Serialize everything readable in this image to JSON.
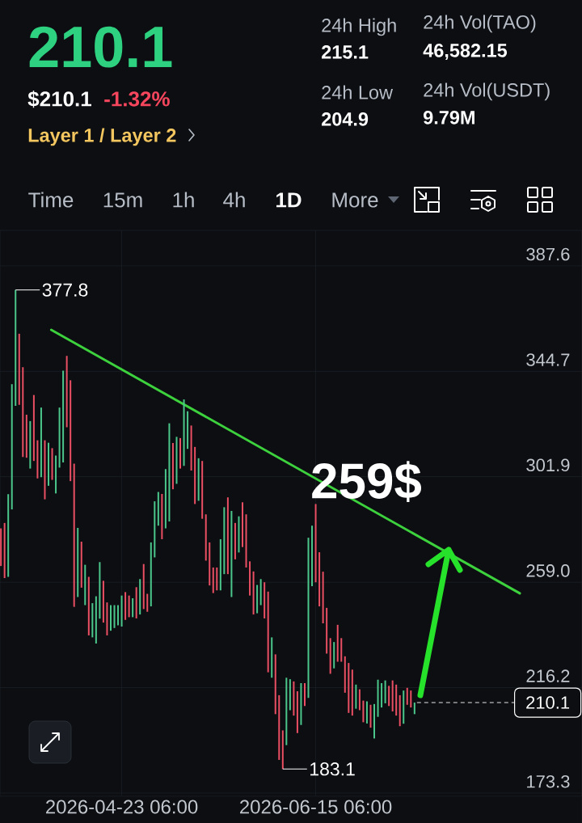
{
  "chart_data": {
    "type": "candlestick",
    "title": "210.1",
    "annotations": [
      "$210.1",
      "-1.32%",
      "Layer 1 / Layer 2",
      "24h High",
      "215.1",
      "24h Low",
      "204.9",
      "24h Vol(TAO)",
      "46,582.15",
      "24h Vol(USDT)",
      "9.79M",
      "Time",
      "15m",
      "1h",
      "4h",
      "1D",
      "More",
      {
        "text": "377.8",
        "x": "2026-03-25T06:00",
        "y": 377.8
      },
      {
        "text": "183.1",
        "x": "2026-06-06T06:00",
        "y": 183.1
      },
      "259$"
    ],
    "x": [
      "2026-03-21T06:00",
      "2026-03-22T06:00",
      "2026-03-23T06:00",
      "2026-03-24T06:00",
      "2026-03-25T06:00",
      "2026-03-26T06:00",
      "2026-03-27T06:00",
      "2026-03-28T06:00",
      "2026-03-29T06:00",
      "2026-03-30T06:00",
      "2026-03-31T06:00",
      "2026-04-01T06:00",
      "2026-04-02T06:00",
      "2026-04-03T06:00",
      "2026-04-04T06:00",
      "2026-04-05T06:00",
      "2026-04-06T06:00",
      "2026-04-07T06:00",
      "2026-04-08T06:00",
      "2026-04-09T06:00",
      "2026-04-10T06:00",
      "2026-04-11T06:00",
      "2026-04-12T06:00",
      "2026-04-13T06:00",
      "2026-04-14T06:00",
      "2026-04-15T06:00",
      "2026-04-16T06:00",
      "2026-04-17T06:00",
      "2026-04-18T06:00",
      "2026-04-19T06:00",
      "2026-04-20T06:00",
      "2026-04-21T06:00",
      "2026-04-22T06:00",
      "2026-04-23T06:00",
      "2026-04-24T06:00",
      "2026-04-25T06:00",
      "2026-04-26T06:00",
      "2026-04-27T06:00",
      "2026-04-28T06:00",
      "2026-04-29T06:00",
      "2026-04-30T06:00",
      "2026-05-01T06:00",
      "2026-05-02T06:00",
      "2026-05-03T06:00",
      "2026-05-04T06:00",
      "2026-05-05T06:00",
      "2026-05-06T06:00",
      "2026-05-07T06:00",
      "2026-05-08T06:00",
      "2026-05-09T06:00",
      "2026-05-10T06:00",
      "2026-05-11T06:00",
      "2026-05-12T06:00",
      "2026-05-13T06:00",
      "2026-05-14T06:00",
      "2026-05-15T06:00",
      "2026-05-16T06:00",
      "2026-05-17T06:00",
      "2026-05-18T06:00",
      "2026-05-19T06:00",
      "2026-05-20T06:00",
      "2026-05-21T06:00",
      "2026-05-22T06:00",
      "2026-05-23T06:00",
      "2026-05-24T06:00",
      "2026-05-25T06:00",
      "2026-05-26T06:00",
      "2026-05-27T06:00",
      "2026-05-28T06:00",
      "2026-05-29T06:00",
      "2026-05-30T06:00",
      "2026-05-31T06:00",
      "2026-06-01T06:00",
      "2026-06-02T06:00",
      "2026-06-03T06:00",
      "2026-06-04T06:00",
      "2026-06-05T06:00",
      "2026-06-06T06:00",
      "2026-06-07T06:00",
      "2026-06-08T06:00",
      "2026-06-09T06:00",
      "2026-06-10T06:00",
      "2026-06-11T06:00",
      "2026-06-12T06:00",
      "2026-06-13T06:00",
      "2026-06-14T06:00",
      "2026-06-15T06:00",
      "2026-06-16T06:00",
      "2026-06-17T06:00",
      "2026-06-18T06:00",
      "2026-06-19T06:00",
      "2026-06-20T06:00",
      "2026-06-21T06:00",
      "2026-06-22T06:00",
      "2026-06-23T06:00",
      "2026-06-24T06:00",
      "2026-06-25T06:00",
      "2026-06-26T06:00",
      "2026-06-27T06:00",
      "2026-06-28T06:00",
      "2026-06-29T06:00",
      "2026-06-30T06:00",
      "2026-07-01T06:00",
      "2026-07-02T06:00",
      "2026-07-03T06:00",
      "2026-07-04T06:00",
      "2026-07-05T06:00",
      "2026-07-06T06:00",
      "2026-07-07T06:00",
      "2026-07-08T06:00",
      "2026-07-09T06:00",
      "2026-07-10T06:00",
      "2026-07-11T06:00",
      "2026-07-12T06:00"
    ],
    "ohlc": [
      [
        280.9,
        280.9,
        265.6,
        265.6
      ],
      [
        283.1,
        283.1,
        260.7,
        260.7
      ],
      [
        261.2,
        294.8,
        261.2,
        294.8
      ],
      [
        288.6,
        339.5,
        288.6,
        339.5
      ],
      [
        330.7,
        377.8,
        330.7,
        377.8
      ],
      [
        360.0,
        360.0,
        331.1,
        331.1
      ],
      [
        346.4,
        346.4,
        309.9,
        309.9
      ],
      [
        327.1,
        327.1,
        309.6,
        309.6
      ],
      [
        305.2,
        324.5,
        305.2,
        324.5
      ],
      [
        335.1,
        335.1,
        308.3,
        308.3
      ],
      [
        316.7,
        316.7,
        301.2,
        301.2
      ],
      [
        301.7,
        330.0,
        301.7,
        330.0
      ],
      [
        316.7,
        316.7,
        292.7,
        292.7
      ],
      [
        298.2,
        315.7,
        298.2,
        315.7
      ],
      [
        313.5,
        313.5,
        300.6,
        300.6
      ],
      [
        295.1,
        310.5,
        295.1,
        310.5
      ],
      [
        305.6,
        330.0,
        305.6,
        330.0
      ],
      [
        307.7,
        345.0,
        307.7,
        345.0
      ],
      [
        351.0,
        351.0,
        322.0,
        322.0
      ],
      [
        341.1,
        341.1,
        300.1,
        300.1
      ],
      [
        307.2,
        307.2,
        249.0,
        249.0
      ],
      [
        253.0,
        281.1,
        253.0,
        281.1
      ],
      [
        275.5,
        275.5,
        256.8,
        256.8
      ],
      [
        249.7,
        266.1,
        249.7,
        266.1
      ],
      [
        261.2,
        261.2,
        237.4,
        237.4
      ],
      [
        236.6,
        250.5,
        236.6,
        250.5
      ],
      [
        234.1,
        253.3,
        234.1,
        253.3
      ],
      [
        244.2,
        267.2,
        244.2,
        267.2
      ],
      [
        259.6,
        259.6,
        242.6,
        242.6
      ],
      [
        250.8,
        250.8,
        237.4,
        237.4
      ],
      [
        239.3,
        249.7,
        239.3,
        249.7
      ],
      [
        240.4,
        249.7,
        240.4,
        249.7
      ],
      [
        241.5,
        249.7,
        241.5,
        249.7
      ],
      [
        241.0,
        253.6,
        241.0,
        253.6
      ],
      [
        255.0,
        255.0,
        243.7,
        243.7
      ],
      [
        253.6,
        253.6,
        244.8,
        244.8
      ],
      [
        244.8,
        252.5,
        244.8,
        252.5
      ],
      [
        257.0,
        257.0,
        244.3,
        244.3
      ],
      [
        245.9,
        260.3,
        245.9,
        260.3
      ],
      [
        266.4,
        266.4,
        248.1,
        248.1
      ],
      [
        254.3,
        254.3,
        247.0,
        247.0
      ],
      [
        249.2,
        275.2,
        249.2,
        275.2
      ],
      [
        269.1,
        291.9,
        269.1,
        291.9
      ],
      [
        282.0,
        295.7,
        282.0,
        295.7
      ],
      [
        294.9,
        294.9,
        276.5,
        276.5
      ],
      [
        280.9,
        305.0,
        280.9,
        305.0
      ],
      [
        283.7,
        323.6,
        283.7,
        323.6
      ],
      [
        315.6,
        315.6,
        296.8,
        296.8
      ],
      [
        299.0,
        318.1,
        299.0,
        318.1
      ],
      [
        317.6,
        317.6,
        305.2,
        305.2
      ],
      [
        306.3,
        333.3,
        306.3,
        333.3
      ],
      [
        313.2,
        328.5,
        313.2,
        328.5
      ],
      [
        322.7,
        322.7,
        304.4,
        304.4
      ],
      [
        314.0,
        314.0,
        290.8,
        290.8
      ],
      [
        292.1,
        309.4,
        292.1,
        309.4
      ],
      [
        308.3,
        308.3,
        284.8,
        284.8
      ],
      [
        286.6,
        286.6,
        267.8,
        267.8
      ],
      [
        275.2,
        275.2,
        257.7,
        257.7
      ],
      [
        265.0,
        265.0,
        254.6,
        254.6
      ],
      [
        265.0,
        265.0,
        255.7,
        255.7
      ],
      [
        255.7,
        276.5,
        255.7,
        276.5
      ],
      [
        262.3,
        289.5,
        262.3,
        289.5
      ],
      [
        293.5,
        293.5,
        262.3,
        262.3
      ],
      [
        253.0,
        288.0,
        253.0,
        288.0
      ],
      [
        283.1,
        283.1,
        268.3,
        268.3
      ],
      [
        271.1,
        285.8,
        271.1,
        285.8
      ],
      [
        291.5,
        291.5,
        273.3,
        273.3
      ],
      [
        286.6,
        286.6,
        265.0,
        265.0
      ],
      [
        267.5,
        267.5,
        253.6,
        253.6
      ],
      [
        263.4,
        263.4,
        245.9,
        245.9
      ],
      [
        246.4,
        257.9,
        246.4,
        257.9
      ],
      [
        249.7,
        260.3,
        249.7,
        260.3
      ],
      [
        259.0,
        259.0,
        244.3,
        244.3
      ],
      [
        255.2,
        255.2,
        222.4,
        222.4
      ],
      [
        220.2,
        236.6,
        220.2,
        236.6
      ],
      [
        229.7,
        229.7,
        205.4,
        205.4
      ],
      [
        213.1,
        213.1,
        186.8,
        186.8
      ],
      [
        198.8,
        198.8,
        183.1,
        183.1
      ],
      [
        192.8,
        220.2,
        192.8,
        220.2
      ],
      [
        207.0,
        219.6,
        207.0,
        219.6
      ],
      [
        218.7,
        218.7,
        204.8,
        204.8
      ],
      [
        214.7,
        214.7,
        197.7,
        197.7
      ],
      [
        201.0,
        218.0,
        201.0,
        218.0
      ],
      [
        218.0,
        218.0,
        208.7,
        208.7
      ],
      [
        212.0,
        277.1,
        212.0,
        277.1
      ],
      [
        257.4,
        282.0,
        257.4,
        282.0
      ],
      [
        290.8,
        290.8,
        259.0,
        259.0
      ],
      [
        271.2,
        271.2,
        249.2,
        249.2
      ],
      [
        263.3,
        263.3,
        242.3,
        242.3
      ],
      [
        248.6,
        248.6,
        230.0,
        230.0
      ],
      [
        236.3,
        236.3,
        221.8,
        221.8
      ],
      [
        224.0,
        234.7,
        224.0,
        234.7
      ],
      [
        241.7,
        241.7,
        226.7,
        226.7
      ],
      [
        236.3,
        236.3,
        226.7,
        226.7
      ],
      [
        228.9,
        228.9,
        214.1,
        214.1
      ],
      [
        226.2,
        226.2,
        205.9,
        205.9
      ],
      [
        223.5,
        223.5,
        204.8,
        204.8
      ],
      [
        207.6,
        217.4,
        207.6,
        217.4
      ],
      [
        215.5,
        215.5,
        207.0,
        207.0
      ],
      [
        210.9,
        210.9,
        202.1,
        202.1
      ],
      [
        201.6,
        210.6,
        201.6,
        210.6
      ],
      [
        209.2,
        209.2,
        199.9,
        199.9
      ],
      [
        195.5,
        209.5,
        195.5,
        209.5
      ],
      [
        204.3,
        219.4,
        204.3,
        219.4
      ],
      [
        208.1,
        218.0,
        208.1,
        218.0
      ],
      [
        209.8,
        219.1,
        209.8,
        219.1
      ],
      [
        216.9,
        216.9,
        208.7,
        208.7
      ],
      [
        219.1,
        219.1,
        206.5,
        206.5
      ],
      [
        217.4,
        217.4,
        204.8,
        204.8
      ],
      [
        213.1,
        213.1,
        200.5,
        200.5
      ],
      [
        201.5,
        215.0,
        201.5,
        215.0
      ],
      [
        216.1,
        216.1,
        209.2,
        209.2
      ],
      [
        215.0,
        215.0,
        208.1,
        208.1
      ],
      [
        205.4,
        210.1,
        205.4,
        210.1
      ]
    ],
    "colors": [
      "#ea4f63",
      "#ea4f63",
      "#4cc78c",
      "#4cc78c",
      "#4cc78c",
      "#ea4f63",
      "#ea4f63",
      "#ea4f63",
      "#4cc78c",
      "#ea4f63",
      "#ea4f63",
      "#4cc78c",
      "#ea4f63",
      "#4cc78c",
      "#ea4f63",
      "#4cc78c",
      "#4cc78c",
      "#4cc78c",
      "#ea4f63",
      "#ea4f63",
      "#ea4f63",
      "#4cc78c",
      "#ea4f63",
      "#4cc78c",
      "#ea4f63",
      "#4cc78c",
      "#4cc78c",
      "#4cc78c",
      "#ea4f63",
      "#ea4f63",
      "#4cc78c",
      "#4cc78c",
      "#4cc78c",
      "#4cc78c",
      "#ea4f63",
      "#ea4f63",
      "#4cc78c",
      "#ea4f63",
      "#4cc78c",
      "#ea4f63",
      "#ea4f63",
      "#4cc78c",
      "#4cc78c",
      "#4cc78c",
      "#ea4f63",
      "#4cc78c",
      "#4cc78c",
      "#ea4f63",
      "#4cc78c",
      "#ea4f63",
      "#4cc78c",
      "#4cc78c",
      "#ea4f63",
      "#ea4f63",
      "#4cc78c",
      "#ea4f63",
      "#ea4f63",
      "#ea4f63",
      "#ea4f63",
      "#ea4f63",
      "#4cc78c",
      "#4cc78c",
      "#ea4f63",
      "#4cc78c",
      "#ea4f63",
      "#4cc78c",
      "#ea4f63",
      "#ea4f63",
      "#ea4f63",
      "#ea4f63",
      "#4cc78c",
      "#4cc78c",
      "#ea4f63",
      "#ea4f63",
      "#4cc78c",
      "#ea4f63",
      "#ea4f63",
      "#ea4f63",
      "#4cc78c",
      "#4cc78c",
      "#ea4f63",
      "#ea4f63",
      "#4cc78c",
      "#ea4f63",
      "#4cc78c",
      "#4cc78c",
      "#ea4f63",
      "#ea4f63",
      "#ea4f63",
      "#ea4f63",
      "#ea4f63",
      "#4cc78c",
      "#ea4f63",
      "#ea4f63",
      "#ea4f63",
      "#ea4f63",
      "#ea4f63",
      "#4cc78c",
      "#ea4f63",
      "#ea4f63",
      "#4cc78c",
      "#ea4f63",
      "#4cc78c",
      "#4cc78c",
      "#4cc78c",
      "#4cc78c",
      "#ea4f63",
      "#ea4f63",
      "#ea4f63",
      "#ea4f63",
      "#4cc78c",
      "#ea4f63",
      "#ea4f63",
      "#4cc78c"
    ],
    "series": [
      {
        "type": "line",
        "color": "#3dd13d",
        "x": [
          "2026-04-04",
          "2026-08-10"
        ],
        "values": [
          361.6,
          254.5
        ]
      }
    ],
    "xlim": [
      "2026-03-21T00:00",
      "2026-08-27T00:00"
    ],
    "xticks": [
      {
        "value": "2026-04-23T06:00",
        "label": "2026-04-23 06:00"
      },
      {
        "value": "2026-06-15T06:00",
        "label": "2026-06-15 06:00"
      }
    ],
    "ylim": [
      172.0,
      402.0
    ],
    "yticks": [
      173.3,
      216.2,
      {
        "value": 259.0,
        "label": "259.0"
      },
      301.9,
      344.7,
      387.6
    ],
    "grid": true,
    "ref_lines": [
      {
        "axis": "y",
        "value": 210.1,
        "label": "210.1",
        "line_style": "dashed",
        "color": "#ffffff"
      }
    ]
  }
}
